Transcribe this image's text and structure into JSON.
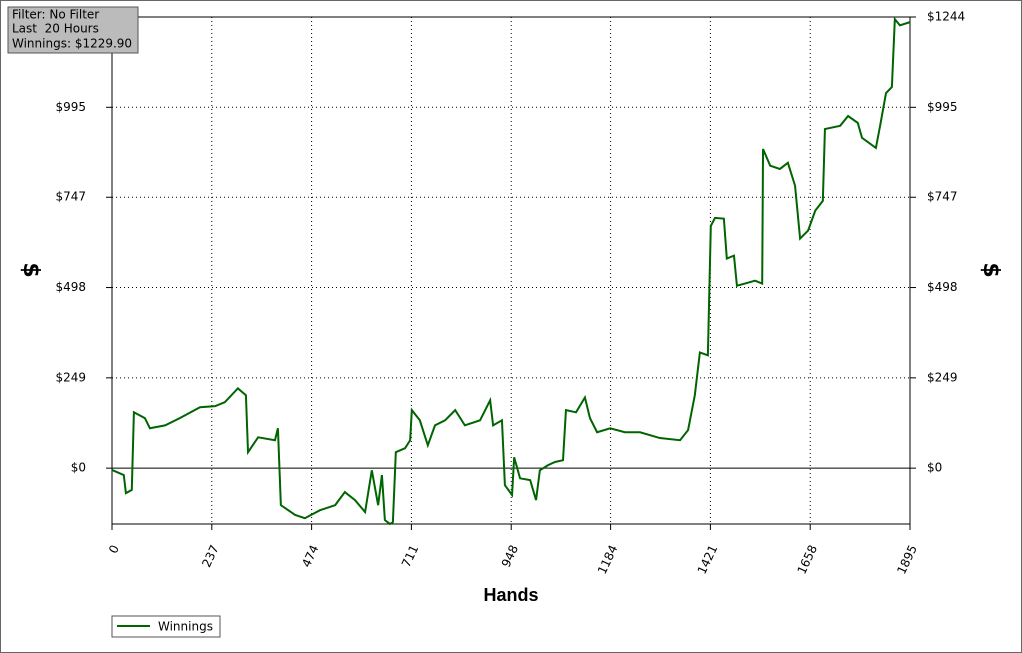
{
  "chart_data": {
    "type": "line",
    "info": [
      "Filter: No Filter",
      "Last  20 Hours",
      "Winnings: $1229.90"
    ],
    "xlabel": "Hands",
    "ylabel": "$",
    "y2label": "$",
    "xlim": [
      0,
      1895
    ],
    "xticks": [
      0,
      237,
      474,
      711,
      948,
      1184,
      1421,
      1658,
      1895
    ],
    "ylim": [
      -154,
      1244
    ],
    "yticks": [
      {
        "value": 0,
        "label": "$0"
      },
      {
        "value": 249,
        "label": "$249"
      },
      {
        "value": 498,
        "label": "$498"
      },
      {
        "value": 747,
        "label": "$747"
      },
      {
        "value": 995,
        "label": "$995"
      }
    ],
    "y2lim": [
      -154,
      1244
    ],
    "y2ticks": [
      {
        "value": 0,
        "label": "$0"
      },
      {
        "value": 249,
        "label": "$249"
      },
      {
        "value": 498,
        "label": "$498"
      },
      {
        "value": 747,
        "label": "$747"
      },
      {
        "value": 995,
        "label": "$995"
      },
      {
        "value": 1244,
        "label": "$1244"
      }
    ],
    "grid": true,
    "x": [
      0,
      28,
      33,
      47,
      52,
      78,
      90,
      126,
      161,
      209,
      245,
      268,
      299,
      318,
      323,
      347,
      387,
      394,
      401,
      435,
      458,
      494,
      530,
      553,
      577,
      601,
      617,
      632,
      641,
      648,
      660,
      667,
      674,
      696,
      708,
      712,
      731,
      750,
      767,
      791,
      815,
      838,
      874,
      898,
      905,
      926,
      933,
      950,
      955,
      969,
      993,
      1007,
      1016,
      1035,
      1052,
      1071,
      1078,
      1102,
      1123,
      1135,
      1152,
      1183,
      1218,
      1254,
      1301,
      1349,
      1368,
      1384,
      1396,
      1415,
      1422,
      1432,
      1453,
      1460,
      1477,
      1484,
      1503,
      1527,
      1544,
      1546,
      1563,
      1586,
      1605,
      1622,
      1634,
      1653,
      1670,
      1688,
      1693,
      1729,
      1748,
      1771,
      1781,
      1814,
      1824,
      1838,
      1852,
      1859,
      1871,
      1895
    ],
    "series": [
      {
        "name": "Winnings",
        "color": "#006400",
        "values": [
          -5,
          -19,
          -69,
          -60,
          154,
          138,
          110,
          118,
          138,
          168,
          171,
          182,
          220,
          201,
          44,
          85,
          77,
          110,
          -102,
          -129,
          -138,
          -116,
          -102,
          -66,
          -88,
          -121,
          -6,
          -102,
          -19,
          -143,
          -154,
          -149,
          44,
          55,
          77,
          160,
          132,
          63,
          118,
          132,
          160,
          118,
          132,
          187,
          118,
          132,
          -47,
          -74,
          30,
          -28,
          -33,
          -88,
          -6,
          8,
          17,
          22,
          160,
          154,
          195,
          138,
          99,
          110,
          99,
          99,
          83,
          77,
          105,
          201,
          319,
          311,
          668,
          690,
          688,
          578,
          586,
          503,
          509,
          517,
          509,
          880,
          834,
          825,
          842,
          779,
          633,
          655,
          710,
          737,
          935,
          944,
          971,
          952,
          911,
          883,
          944,
          1034,
          1051,
          1238,
          1221,
          1229.9
        ]
      }
    ]
  }
}
